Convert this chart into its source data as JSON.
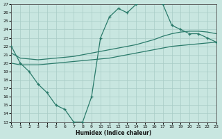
{
  "xlabel": "Humidex (Indice chaleur)",
  "line_jagged_x": [
    0,
    1,
    2,
    3,
    4,
    5,
    6,
    7,
    8,
    9,
    10,
    11,
    12,
    13,
    14,
    15,
    16,
    17,
    18,
    19,
    20,
    21,
    22,
    23
  ],
  "line_jagged_y": [
    22.0,
    20.0,
    19.0,
    17.5,
    16.5,
    15.0,
    14.5,
    13.0,
    13.0,
    16.0,
    23.0,
    25.5,
    26.5,
    26.0,
    27.0,
    27.5,
    27.5,
    27.0,
    24.5,
    24.0,
    23.5,
    23.5,
    23.0,
    22.5
  ],
  "line_upper_x": [
    0,
    1,
    2,
    3,
    4,
    5,
    6,
    7,
    8,
    9,
    10,
    11,
    12,
    13,
    14,
    15,
    16,
    17,
    18,
    19,
    20,
    21,
    22,
    23
  ],
  "line_upper_y": [
    21.2,
    20.6,
    20.5,
    20.4,
    20.5,
    20.6,
    20.7,
    20.8,
    21.0,
    21.2,
    21.4,
    21.6,
    21.8,
    22.0,
    22.2,
    22.5,
    22.8,
    23.2,
    23.5,
    23.7,
    23.8,
    23.8,
    23.7,
    23.5
  ],
  "line_lower_x": [
    0,
    1,
    2,
    3,
    4,
    5,
    6,
    7,
    8,
    9,
    10,
    11,
    12,
    13,
    14,
    15,
    16,
    17,
    18,
    19,
    20,
    21,
    22,
    23
  ],
  "line_lower_y": [
    20.0,
    19.8,
    19.8,
    19.8,
    19.9,
    20.0,
    20.1,
    20.2,
    20.3,
    20.4,
    20.5,
    20.6,
    20.8,
    21.0,
    21.2,
    21.4,
    21.6,
    21.8,
    22.0,
    22.1,
    22.2,
    22.3,
    22.4,
    22.5
  ],
  "ylim": [
    13,
    27
  ],
  "xlim": [
    0,
    23
  ],
  "color": "#2a7a6a",
  "bg_color": "#c8e6e0",
  "grid_color": "#a8ccc6",
  "linewidth": 0.9
}
